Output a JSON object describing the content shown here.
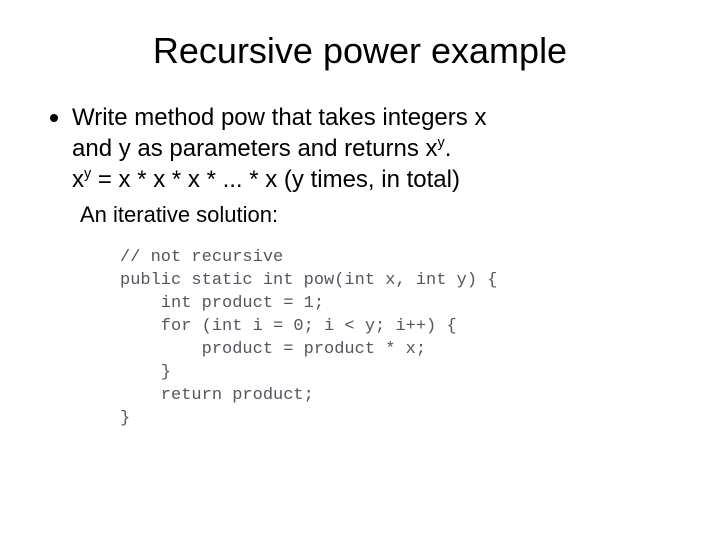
{
  "title": "Recursive power example",
  "bullet": {
    "line1_a": "Write method ",
    "line1_pow": "pow",
    "line1_b": " that takes integers ",
    "line1_x": "x",
    "line1_c": " and ",
    "line1_y": "y",
    "line1_d": " as parameters and returns x",
    "line1_sup": "y",
    "line1_e": "."
  },
  "formula": {
    "base": "x",
    "sup": "y",
    "rest": " = x * x * x * ... * x (y times, in total)"
  },
  "subline": "An iterative solution:",
  "code": {
    "l1": "// not recursive",
    "l2": "public static int pow(int x, int y) {",
    "l3": "    int product = 1;",
    "l4": "    for (int i = 0; i < y; i++) {",
    "l5": "        product = product * x;",
    "l6": "    }",
    "l7": "    return product;",
    "l8": "}"
  },
  "style": {
    "title_fontsize": 36,
    "body_fontsize": 24,
    "sub_fontsize": 22,
    "code_fontsize": 17,
    "code_color": "#555560",
    "text_color": "#000000",
    "background": "#ffffff",
    "code_font": "Courier New"
  }
}
